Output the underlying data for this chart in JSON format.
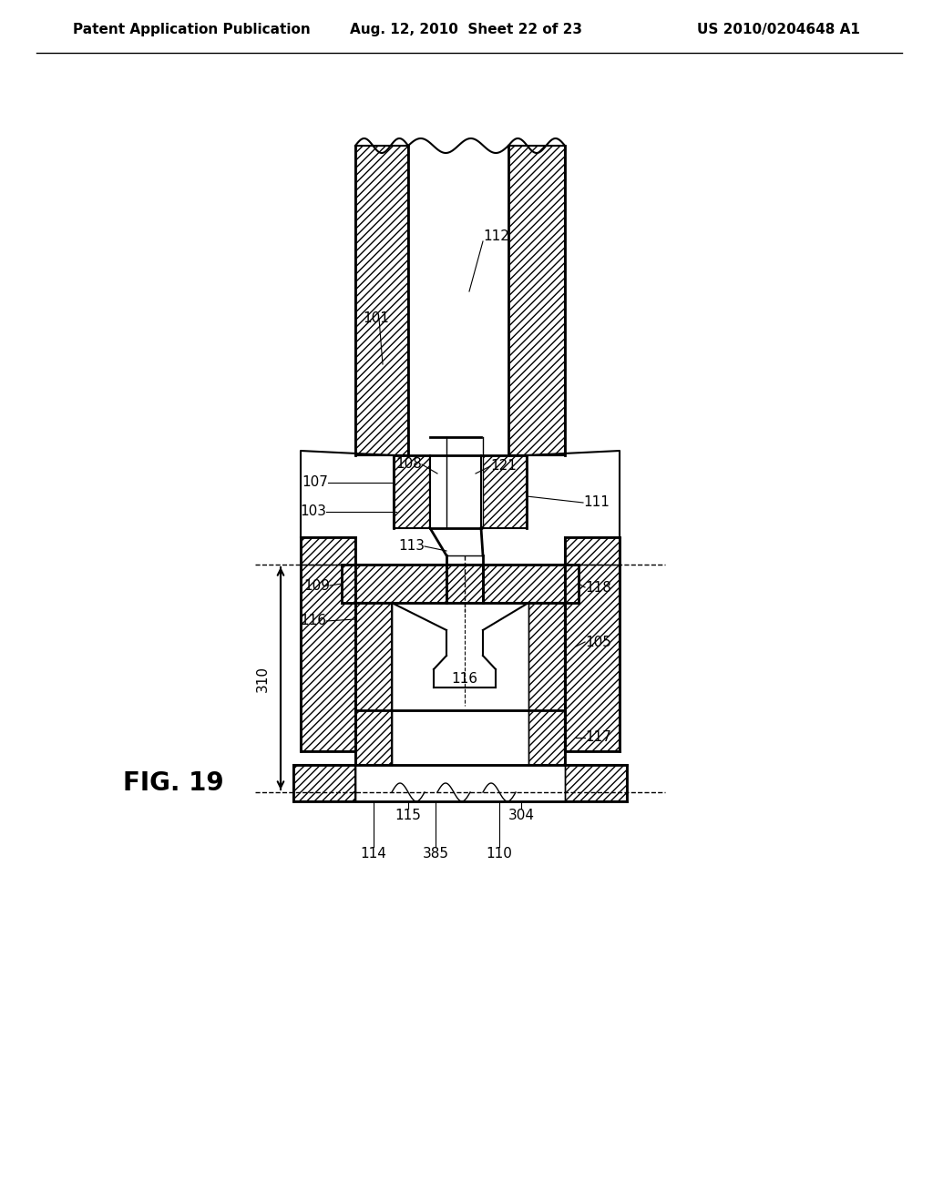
{
  "title_left": "Patent Application Publication",
  "title_mid": "Aug. 12, 2010  Sheet 22 of 23",
  "title_right": "US 2010/0204648 A1",
  "fig_label": "FIG. 19",
  "bg": "#ffffff",
  "lc": "#000000"
}
